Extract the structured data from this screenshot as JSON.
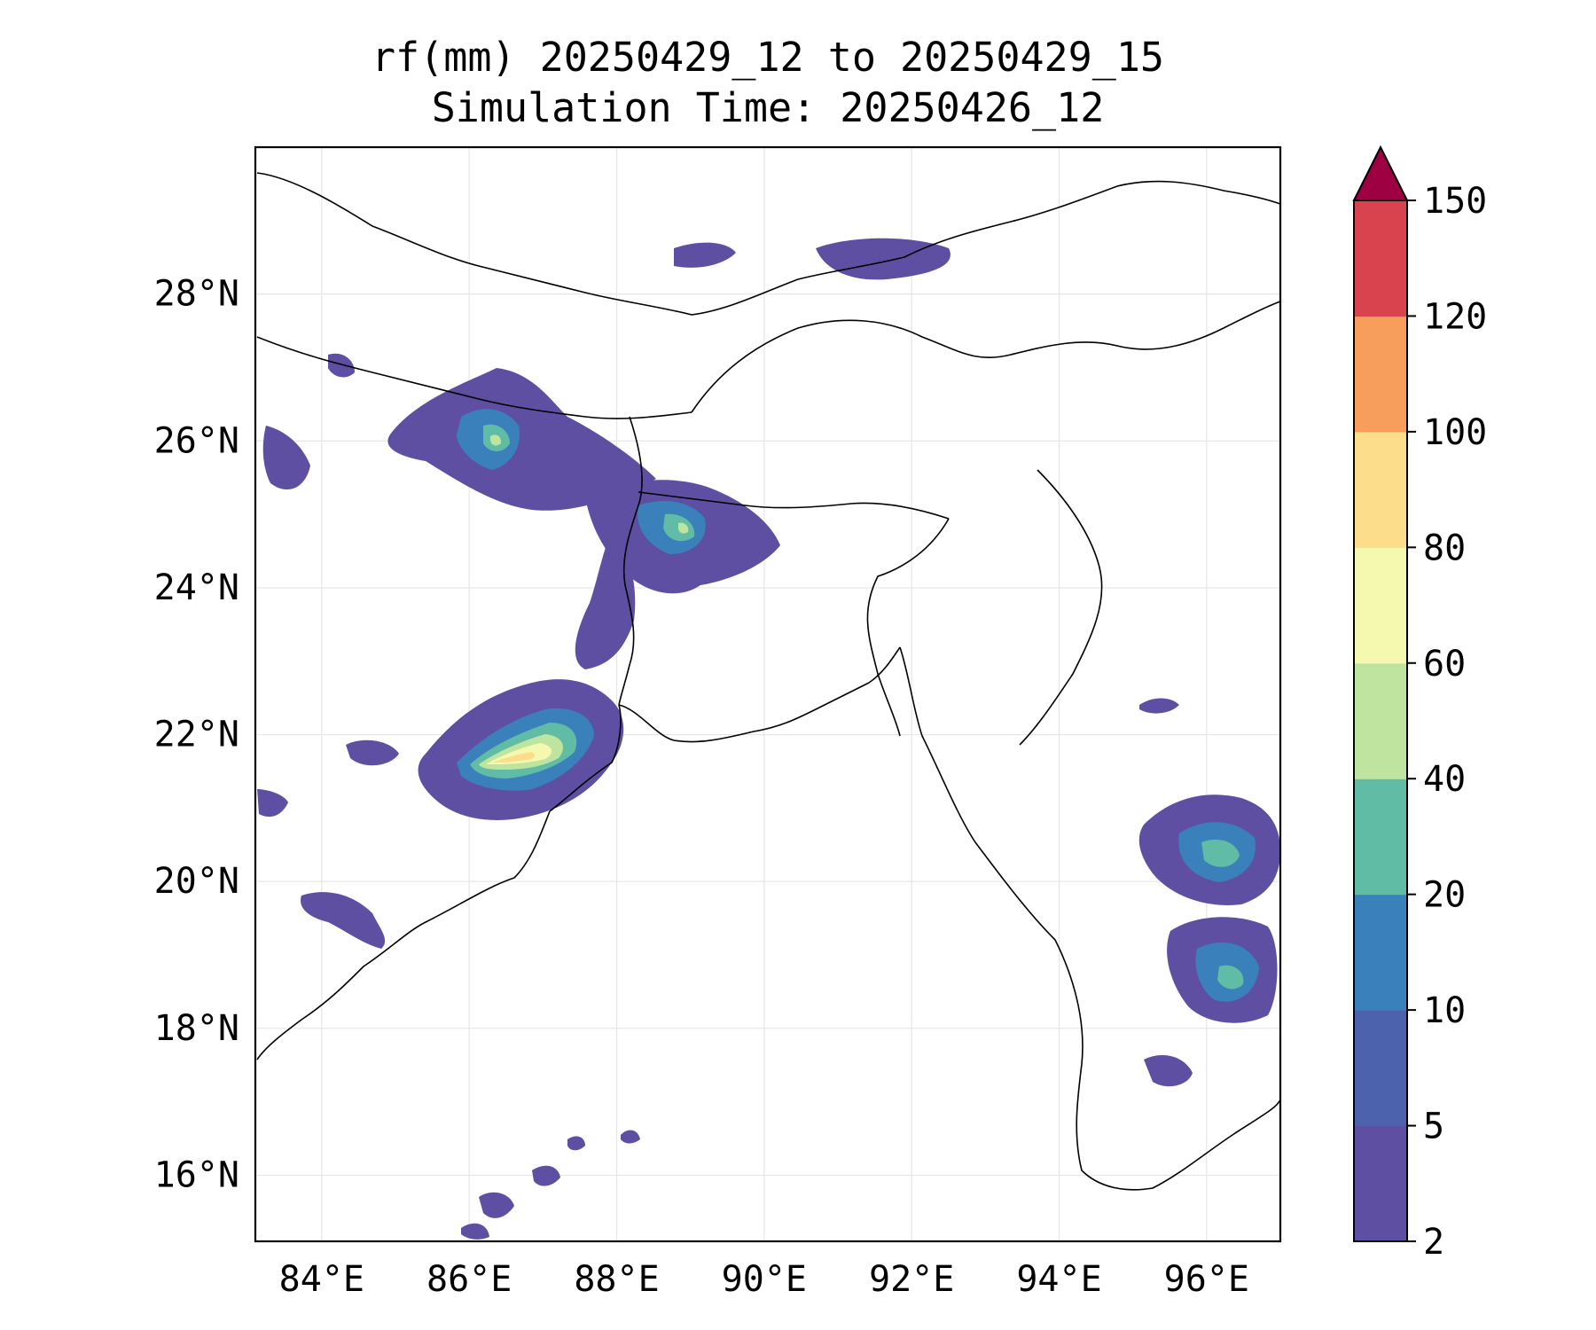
{
  "title": {
    "line1": "rf(mm) 20250429_12 to 20250429_15",
    "line2": "Simulation Time: 20250426_12"
  },
  "map": {
    "lon_range": [
      83.1,
      97.0
    ],
    "lat_range": [
      15.1,
      30.0
    ],
    "lon_ticks": [
      "84°E",
      "86°E",
      "88°E",
      "90°E",
      "92°E",
      "94°E",
      "96°E"
    ],
    "lat_ticks": [
      "28°N",
      "26°N",
      "24°N",
      "22°N",
      "20°N",
      "18°N",
      "16°N"
    ],
    "gridlines": true
  },
  "colorbar": {
    "levels": [
      2,
      5,
      10,
      20,
      40,
      60,
      80,
      100,
      120,
      150
    ],
    "labels": [
      "2",
      "5",
      "10",
      "20",
      "40",
      "60",
      "80",
      "100",
      "120",
      "150"
    ],
    "colors": [
      "#5e4fa2",
      "#4c62ad",
      "#3a81bb",
      "#61bca6",
      "#bfe4a0",
      "#f5f9af",
      "#fbdd8b",
      "#f89e5c",
      "#d9434d",
      "#9e0142"
    ],
    "extend": "max"
  }
}
